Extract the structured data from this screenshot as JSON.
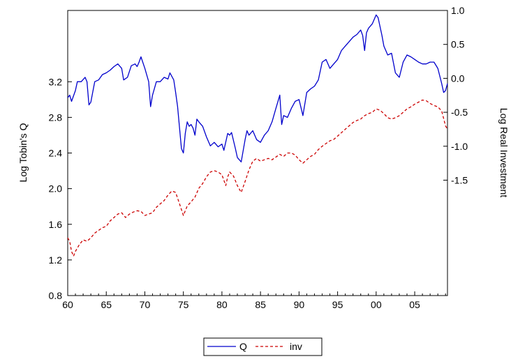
{
  "chart_data": {
    "type": "line",
    "xlabel": "",
    "ylabel_left": "Log Tobin's Q",
    "ylabel_right": "Log Real Investment",
    "x_range": [
      1960,
      2009.25
    ],
    "x_ticks": [
      1960,
      1965,
      1970,
      1975,
      1980,
      1985,
      1990,
      1995,
      2000,
      2005
    ],
    "x_tick_labels": [
      "60",
      "65",
      "70",
      "75",
      "80",
      "85",
      "90",
      "95",
      "00",
      "05"
    ],
    "left_axis": {
      "ylim": [
        0.8,
        4.0
      ],
      "ticks": [
        0.8,
        1.2,
        1.6,
        2.0,
        2.4,
        2.8,
        3.2
      ],
      "tick_labels": [
        "0.8",
        "1.2",
        "1.6",
        "2.0",
        "2.4",
        "2.8",
        "3.2"
      ]
    },
    "right_axis": {
      "ylim": [
        -3.2,
        1.0
      ],
      "ticks": [
        -1.5,
        -1.0,
        -0.5,
        0.0,
        0.5,
        1.0
      ],
      "tick_labels": [
        "-1.5",
        "-1.0",
        "-0.5",
        "0.0",
        "0.5",
        "1.0"
      ]
    },
    "grid": false,
    "legend_position": "bottom-center",
    "series": [
      {
        "name": "Q",
        "axis": "left",
        "color": "#0000cc",
        "dash": "solid",
        "points": [
          [
            1960.0,
            3.02
          ],
          [
            1960.25,
            3.05
          ],
          [
            1960.5,
            2.98
          ],
          [
            1961.0,
            3.1
          ],
          [
            1961.25,
            3.2
          ],
          [
            1961.75,
            3.2
          ],
          [
            1962.25,
            3.25
          ],
          [
            1962.5,
            3.2
          ],
          [
            1962.75,
            2.94
          ],
          [
            1963.0,
            2.97
          ],
          [
            1963.5,
            3.2
          ],
          [
            1964.0,
            3.22
          ],
          [
            1964.5,
            3.28
          ],
          [
            1965.0,
            3.3
          ],
          [
            1965.5,
            3.33
          ],
          [
            1966.0,
            3.37
          ],
          [
            1966.5,
            3.4
          ],
          [
            1967.0,
            3.35
          ],
          [
            1967.25,
            3.22
          ],
          [
            1967.75,
            3.25
          ],
          [
            1968.25,
            3.38
          ],
          [
            1968.75,
            3.4
          ],
          [
            1969.0,
            3.37
          ],
          [
            1969.25,
            3.42
          ],
          [
            1969.5,
            3.48
          ],
          [
            1970.0,
            3.35
          ],
          [
            1970.5,
            3.2
          ],
          [
            1970.75,
            2.92
          ],
          [
            1971.0,
            3.05
          ],
          [
            1971.5,
            3.2
          ],
          [
            1972.0,
            3.2
          ],
          [
            1972.5,
            3.25
          ],
          [
            1973.0,
            3.23
          ],
          [
            1973.25,
            3.3
          ],
          [
            1973.75,
            3.22
          ],
          [
            1974.0,
            3.08
          ],
          [
            1974.25,
            2.92
          ],
          [
            1974.5,
            2.68
          ],
          [
            1974.75,
            2.45
          ],
          [
            1975.0,
            2.4
          ],
          [
            1975.25,
            2.62
          ],
          [
            1975.5,
            2.75
          ],
          [
            1975.75,
            2.7
          ],
          [
            1976.0,
            2.72
          ],
          [
            1976.25,
            2.68
          ],
          [
            1976.5,
            2.6
          ],
          [
            1976.75,
            2.78
          ],
          [
            1977.0,
            2.75
          ],
          [
            1977.5,
            2.7
          ],
          [
            1978.0,
            2.58
          ],
          [
            1978.5,
            2.48
          ],
          [
            1979.0,
            2.52
          ],
          [
            1979.5,
            2.47
          ],
          [
            1980.0,
            2.5
          ],
          [
            1980.25,
            2.43
          ],
          [
            1980.75,
            2.62
          ],
          [
            1981.0,
            2.6
          ],
          [
            1981.25,
            2.63
          ],
          [
            1981.75,
            2.45
          ],
          [
            1982.0,
            2.35
          ],
          [
            1982.5,
            2.3
          ],
          [
            1983.0,
            2.55
          ],
          [
            1983.25,
            2.65
          ],
          [
            1983.5,
            2.6
          ],
          [
            1984.0,
            2.65
          ],
          [
            1984.5,
            2.55
          ],
          [
            1985.0,
            2.52
          ],
          [
            1985.5,
            2.6
          ],
          [
            1986.0,
            2.65
          ],
          [
            1986.5,
            2.75
          ],
          [
            1987.0,
            2.9
          ],
          [
            1987.5,
            3.05
          ],
          [
            1987.75,
            2.72
          ],
          [
            1988.0,
            2.82
          ],
          [
            1988.5,
            2.8
          ],
          [
            1989.0,
            2.9
          ],
          [
            1989.5,
            2.98
          ],
          [
            1990.0,
            3.0
          ],
          [
            1990.5,
            2.82
          ],
          [
            1991.0,
            3.08
          ],
          [
            1991.5,
            3.12
          ],
          [
            1992.0,
            3.15
          ],
          [
            1992.5,
            3.22
          ],
          [
            1993.0,
            3.42
          ],
          [
            1993.5,
            3.45
          ],
          [
            1994.0,
            3.35
          ],
          [
            1994.5,
            3.4
          ],
          [
            1995.0,
            3.45
          ],
          [
            1995.5,
            3.55
          ],
          [
            1996.0,
            3.6
          ],
          [
            1996.5,
            3.65
          ],
          [
            1997.0,
            3.7
          ],
          [
            1997.5,
            3.73
          ],
          [
            1998.0,
            3.78
          ],
          [
            1998.25,
            3.72
          ],
          [
            1998.5,
            3.55
          ],
          [
            1998.75,
            3.75
          ],
          [
            1999.0,
            3.8
          ],
          [
            1999.5,
            3.85
          ],
          [
            2000.0,
            3.95
          ],
          [
            2000.25,
            3.92
          ],
          [
            2000.75,
            3.72
          ],
          [
            2001.0,
            3.6
          ],
          [
            2001.5,
            3.5
          ],
          [
            2002.0,
            3.52
          ],
          [
            2002.5,
            3.3
          ],
          [
            2003.0,
            3.25
          ],
          [
            2003.5,
            3.42
          ],
          [
            2004.0,
            3.5
          ],
          [
            2004.5,
            3.48
          ],
          [
            2005.0,
            3.45
          ],
          [
            2005.5,
            3.42
          ],
          [
            2006.0,
            3.4
          ],
          [
            2006.5,
            3.4
          ],
          [
            2007.0,
            3.42
          ],
          [
            2007.5,
            3.42
          ],
          [
            2008.0,
            3.35
          ],
          [
            2008.5,
            3.18
          ],
          [
            2008.75,
            3.08
          ],
          [
            2009.0,
            3.1
          ],
          [
            2009.25,
            3.18
          ]
        ]
      },
      {
        "name": "inv",
        "axis": "right",
        "color": "#cc0000",
        "dash": "dashed",
        "points": [
          [
            1960.0,
            -2.35
          ],
          [
            1960.25,
            -2.4
          ],
          [
            1960.5,
            -2.55
          ],
          [
            1960.75,
            -2.62
          ],
          [
            1961.0,
            -2.55
          ],
          [
            1961.5,
            -2.45
          ],
          [
            1962.0,
            -2.38
          ],
          [
            1962.5,
            -2.4
          ],
          [
            1963.0,
            -2.35
          ],
          [
            1963.5,
            -2.28
          ],
          [
            1964.0,
            -2.24
          ],
          [
            1964.5,
            -2.2
          ],
          [
            1965.0,
            -2.18
          ],
          [
            1965.5,
            -2.1
          ],
          [
            1966.0,
            -2.05
          ],
          [
            1966.5,
            -2.0
          ],
          [
            1967.0,
            -1.98
          ],
          [
            1967.5,
            -2.05
          ],
          [
            1968.0,
            -2.0
          ],
          [
            1968.5,
            -1.97
          ],
          [
            1969.0,
            -1.95
          ],
          [
            1969.5,
            -1.96
          ],
          [
            1970.0,
            -2.02
          ],
          [
            1970.5,
            -2.0
          ],
          [
            1971.0,
            -1.98
          ],
          [
            1971.5,
            -1.9
          ],
          [
            1972.0,
            -1.85
          ],
          [
            1972.5,
            -1.8
          ],
          [
            1973.0,
            -1.72
          ],
          [
            1973.5,
            -1.66
          ],
          [
            1974.0,
            -1.68
          ],
          [
            1974.5,
            -1.85
          ],
          [
            1975.0,
            -2.02
          ],
          [
            1975.5,
            -1.88
          ],
          [
            1976.0,
            -1.82
          ],
          [
            1976.5,
            -1.75
          ],
          [
            1977.0,
            -1.62
          ],
          [
            1977.5,
            -1.55
          ],
          [
            1978.0,
            -1.45
          ],
          [
            1978.5,
            -1.38
          ],
          [
            1979.0,
            -1.36
          ],
          [
            1979.5,
            -1.38
          ],
          [
            1980.0,
            -1.42
          ],
          [
            1980.5,
            -1.58
          ],
          [
            1980.75,
            -1.45
          ],
          [
            1981.0,
            -1.38
          ],
          [
            1981.5,
            -1.44
          ],
          [
            1982.0,
            -1.58
          ],
          [
            1982.5,
            -1.68
          ],
          [
            1983.0,
            -1.52
          ],
          [
            1983.5,
            -1.35
          ],
          [
            1984.0,
            -1.22
          ],
          [
            1984.5,
            -1.18
          ],
          [
            1985.0,
            -1.22
          ],
          [
            1985.5,
            -1.2
          ],
          [
            1986.0,
            -1.18
          ],
          [
            1986.5,
            -1.2
          ],
          [
            1987.0,
            -1.16
          ],
          [
            1987.5,
            -1.12
          ],
          [
            1988.0,
            -1.15
          ],
          [
            1988.5,
            -1.1
          ],
          [
            1989.0,
            -1.1
          ],
          [
            1989.5,
            -1.13
          ],
          [
            1990.0,
            -1.2
          ],
          [
            1990.5,
            -1.25
          ],
          [
            1991.0,
            -1.2
          ],
          [
            1991.5,
            -1.15
          ],
          [
            1992.0,
            -1.12
          ],
          [
            1992.5,
            -1.05
          ],
          [
            1993.0,
            -1.0
          ],
          [
            1993.5,
            -0.96
          ],
          [
            1994.0,
            -0.92
          ],
          [
            1994.5,
            -0.9
          ],
          [
            1995.0,
            -0.85
          ],
          [
            1995.5,
            -0.8
          ],
          [
            1996.0,
            -0.75
          ],
          [
            1996.5,
            -0.7
          ],
          [
            1997.0,
            -0.65
          ],
          [
            1997.5,
            -0.62
          ],
          [
            1998.0,
            -0.6
          ],
          [
            1998.5,
            -0.55
          ],
          [
            1999.0,
            -0.52
          ],
          [
            1999.5,
            -0.5
          ],
          [
            2000.0,
            -0.45
          ],
          [
            2000.5,
            -0.47
          ],
          [
            2001.0,
            -0.52
          ],
          [
            2001.5,
            -0.58
          ],
          [
            2002.0,
            -0.6
          ],
          [
            2002.5,
            -0.58
          ],
          [
            2003.0,
            -0.55
          ],
          [
            2003.5,
            -0.5
          ],
          [
            2004.0,
            -0.45
          ],
          [
            2004.5,
            -0.42
          ],
          [
            2005.0,
            -0.38
          ],
          [
            2005.5,
            -0.35
          ],
          [
            2006.0,
            -0.32
          ],
          [
            2006.5,
            -0.33
          ],
          [
            2007.0,
            -0.37
          ],
          [
            2007.5,
            -0.4
          ],
          [
            2008.0,
            -0.42
          ],
          [
            2008.5,
            -0.48
          ],
          [
            2009.0,
            -0.7
          ],
          [
            2009.25,
            -0.75
          ]
        ]
      }
    ]
  }
}
